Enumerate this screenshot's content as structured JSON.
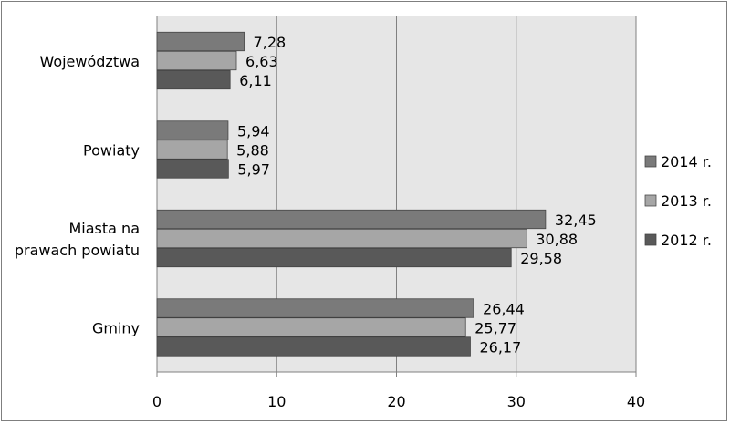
{
  "chart_data": {
    "type": "bar",
    "orientation": "horizontal",
    "categories": [
      "Województwa",
      "Powiaty",
      "Miasta na\nprawach powiatu",
      "Gminy"
    ],
    "series": [
      {
        "name": "2014 r.",
        "color": "#7a7a7a",
        "values": [
          7.28,
          5.94,
          32.45,
          26.44
        ],
        "labels": [
          "7,28",
          "5,94",
          "32,45",
          "26,44"
        ]
      },
      {
        "name": "2013 r.",
        "color": "#a6a6a6",
        "values": [
          6.63,
          5.88,
          30.88,
          25.77
        ],
        "labels": [
          "6,63",
          "5,88",
          "30,88",
          "25,77"
        ]
      },
      {
        "name": "2012 r.",
        "color": "#595959",
        "values": [
          6.11,
          5.97,
          29.58,
          26.17
        ],
        "labels": [
          "6,11",
          "5,97",
          "29,58",
          "26,17"
        ]
      }
    ],
    "xlim": [
      0,
      40
    ],
    "xticks": [
      0,
      10,
      20,
      30,
      40
    ],
    "tick_labels": [
      "0",
      "10",
      "20",
      "30",
      "40"
    ],
    "grid": true,
    "plot_background": "#e6e6e6",
    "legend_position": "right"
  }
}
